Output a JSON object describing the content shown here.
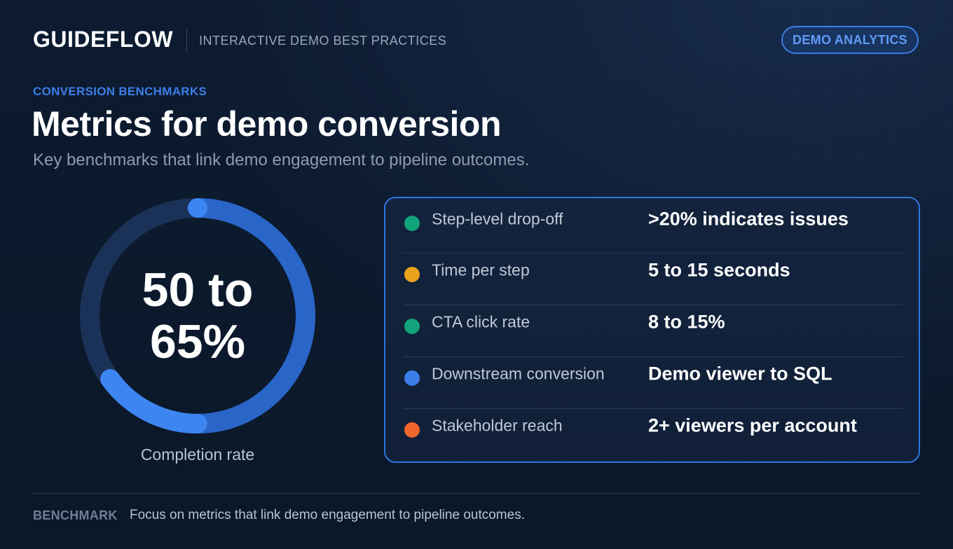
{
  "header": {
    "brand": "GUIDEFLOW",
    "subtitle": "INTERACTIVE DEMO BEST PRACTICES",
    "badge": "DEMO ANALYTICS"
  },
  "hero": {
    "eyebrow": "CONVERSION BENCHMARKS",
    "title": "Metrics for demo conversion",
    "lead": "Key benchmarks that link demo engagement to pipeline outcomes."
  },
  "completion": {
    "value_text": "50 to 65%",
    "caption": "Completion rate",
    "ring_fill_fraction": 0.65,
    "ring_highlight_range": [
      0.5,
      0.65
    ]
  },
  "metrics": [
    {
      "label": "Step-level drop-off",
      "value": ">20% indicates issues",
      "color": "#12a37a"
    },
    {
      "label": "Time per step",
      "value": "5 to 15 seconds",
      "color": "#e9a21b"
    },
    {
      "label": "CTA click rate",
      "value": "8 to 15%",
      "color": "#12a37a"
    },
    {
      "label": "Downstream conversion",
      "value": "Demo viewer to SQL",
      "color": "#3b7ee8"
    },
    {
      "label": "Stakeholder reach",
      "value": "2+ viewers per account",
      "color": "#f06529"
    }
  ],
  "footer": {
    "tag": "BENCHMARK",
    "text": "Focus on metrics that link demo engagement to pipeline outcomes."
  },
  "colors": {
    "accent": "#3b7ee8",
    "background": "#0c1a2e"
  }
}
